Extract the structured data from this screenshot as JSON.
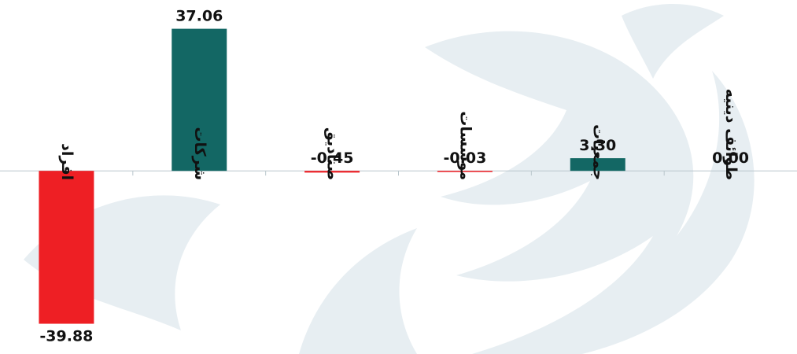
{
  "colors": {
    "positive": "#136764",
    "negative": "#ee1f24",
    "axis": "#b9c6cc",
    "watermark": "#e7eef2",
    "text": "#111111"
  },
  "chart_data": {
    "type": "bar",
    "categories": [
      "افراد",
      "شرکات",
      "صنادیق",
      "موسسات",
      "جمعیات",
      "طوائف دینیه"
    ],
    "values": [
      -39.88,
      37.06,
      -0.45,
      -0.03,
      3.3,
      0.0
    ],
    "value_labels": [
      "-39.88",
      "37.06",
      "-0.45",
      "-0.03",
      "3.30",
      "0.00"
    ],
    "ylim": [
      -41,
      38
    ],
    "grid": false,
    "legend": "none",
    "title": "",
    "xlabel": "",
    "ylabel": ""
  }
}
